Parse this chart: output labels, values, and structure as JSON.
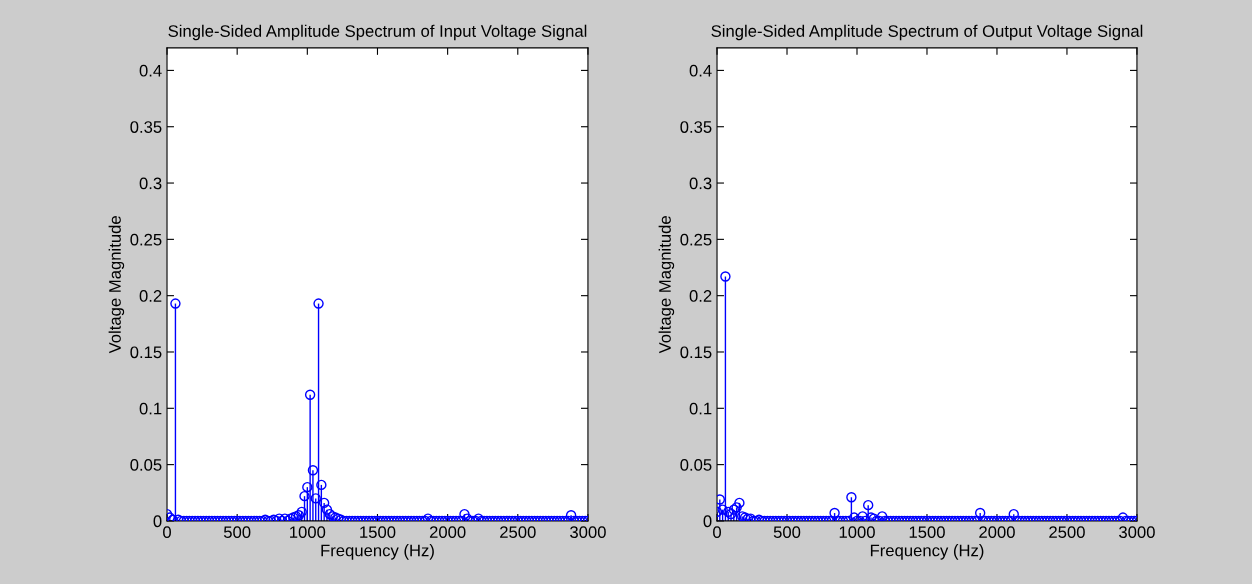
{
  "chart_data": [
    {
      "type": "lollipop",
      "title": "Single-Sided Amplitude Spectrum of Input Voltage Signal",
      "xlabel": "Frequency (Hz)",
      "ylabel": "Voltage Magnitude",
      "x": [
        0,
        20,
        40,
        60,
        80,
        100,
        120,
        140,
        160,
        180,
        200,
        220,
        240,
        260,
        280,
        300,
        320,
        340,
        360,
        380,
        400,
        420,
        440,
        460,
        480,
        500,
        520,
        540,
        560,
        580,
        600,
        620,
        640,
        660,
        680,
        700,
        720,
        740,
        760,
        780,
        800,
        820,
        840,
        860,
        880,
        900,
        920,
        940,
        960,
        980,
        1000,
        1020,
        1040,
        1060,
        1080,
        1100,
        1120,
        1140,
        1160,
        1180,
        1200,
        1220,
        1240,
        1260,
        1280,
        1300,
        1320,
        1340,
        1360,
        1380,
        1400,
        1420,
        1440,
        1460,
        1480,
        1500,
        1520,
        1540,
        1560,
        1580,
        1600,
        1620,
        1640,
        1660,
        1680,
        1700,
        1720,
        1740,
        1760,
        1780,
        1800,
        1820,
        1840,
        1860,
        1880,
        1900,
        1920,
        1940,
        1960,
        1980,
        2000,
        2020,
        2040,
        2060,
        2080,
        2100,
        2120,
        2140,
        2160,
        2180,
        2200,
        2220,
        2240,
        2260,
        2280,
        2300,
        2320,
        2340,
        2360,
        2380,
        2400,
        2420,
        2440,
        2460,
        2480,
        2500,
        2520,
        2540,
        2560,
        2580,
        2600,
        2620,
        2640,
        2660,
        2680,
        2700,
        2720,
        2740,
        2760,
        2780,
        2800,
        2820,
        2840,
        2860,
        2880,
        2900,
        2920,
        2940,
        2960,
        2980,
        3000
      ],
      "series": [
        {
          "color": "#0000ff",
          "values": [
            0.006,
            0.003,
            0.001,
            0.193,
            0.001,
            0,
            0,
            0,
            0,
            0,
            0,
            0,
            0,
            0,
            0,
            0,
            0,
            0,
            0,
            0,
            0,
            0,
            0,
            0,
            0,
            0,
            0,
            0,
            0,
            0,
            0,
            0,
            0,
            0,
            0,
            0.001,
            0,
            0,
            0.001,
            0,
            0.002,
            0,
            0.002,
            0,
            0.002,
            0.003,
            0.004,
            0.005,
            0.008,
            0.022,
            0.03,
            0.112,
            0.045,
            0.02,
            0.193,
            0.032,
            0.016,
            0.01,
            0.006,
            0.004,
            0.003,
            0.002,
            0.001,
            0,
            0,
            0,
            0,
            0,
            0,
            0,
            0,
            0,
            0,
            0,
            0,
            0,
            0,
            0,
            0,
            0,
            0,
            0,
            0,
            0,
            0,
            0,
            0,
            0,
            0,
            0,
            0,
            0,
            0,
            0.002,
            0,
            0,
            0,
            0,
            0,
            0,
            0,
            0,
            0,
            0,
            0,
            0,
            0.006,
            0.002,
            0,
            0,
            0,
            0.002,
            0,
            0,
            0,
            0,
            0,
            0,
            0,
            0,
            0,
            0,
            0,
            0,
            0,
            0,
            0,
            0,
            0,
            0,
            0,
            0,
            0,
            0,
            0,
            0,
            0,
            0,
            0,
            0,
            0,
            0,
            0,
            0,
            0.005,
            0,
            0,
            0,
            0,
            0,
            0
          ]
        }
      ],
      "xlim": [
        0,
        3000
      ],
      "xticks": [
        0,
        500,
        1000,
        1500,
        2000,
        2500,
        3000
      ],
      "ylim": [
        0,
        0.42
      ],
      "yticks": [
        0,
        0.05,
        0.1,
        0.15,
        0.2,
        0.25,
        0.3,
        0.35,
        0.4
      ],
      "marker": "circle",
      "grid": false,
      "legend": false
    },
    {
      "type": "lollipop",
      "title": "Single-Sided Amplitude Spectrum of Output Voltage Signal",
      "xlabel": "Frequency (Hz)",
      "ylabel": "Voltage Magnitude",
      "x": [
        0,
        20,
        40,
        60,
        80,
        100,
        120,
        140,
        160,
        180,
        200,
        220,
        240,
        260,
        280,
        300,
        320,
        340,
        360,
        380,
        400,
        420,
        440,
        460,
        480,
        500,
        520,
        540,
        560,
        580,
        600,
        620,
        640,
        660,
        680,
        700,
        720,
        740,
        760,
        780,
        800,
        820,
        840,
        860,
        880,
        900,
        920,
        940,
        960,
        980,
        1000,
        1020,
        1040,
        1060,
        1080,
        1100,
        1120,
        1140,
        1160,
        1180,
        1200,
        1220,
        1240,
        1260,
        1280,
        1300,
        1320,
        1340,
        1360,
        1380,
        1400,
        1420,
        1440,
        1460,
        1480,
        1500,
        1520,
        1540,
        1560,
        1580,
        1600,
        1620,
        1640,
        1660,
        1680,
        1700,
        1720,
        1740,
        1760,
        1780,
        1800,
        1820,
        1840,
        1860,
        1880,
        1900,
        1920,
        1940,
        1960,
        1980,
        2000,
        2020,
        2040,
        2060,
        2080,
        2100,
        2120,
        2140,
        2160,
        2180,
        2200,
        2220,
        2240,
        2260,
        2280,
        2300,
        2320,
        2340,
        2360,
        2380,
        2400,
        2420,
        2440,
        2460,
        2480,
        2500,
        2520,
        2540,
        2560,
        2580,
        2600,
        2620,
        2640,
        2660,
        2680,
        2700,
        2720,
        2740,
        2760,
        2780,
        2800,
        2820,
        2840,
        2860,
        2880,
        2900,
        2920,
        2940,
        2960,
        2980,
        3000
      ],
      "series": [
        {
          "color": "#0000ff",
          "values": [
            0.008,
            0.019,
            0.01,
            0.217,
            0.008,
            0.006,
            0.01,
            0.012,
            0.016,
            0.004,
            0.003,
            0.002,
            0.002,
            0,
            0,
            0.001,
            0,
            0,
            0,
            0,
            0,
            0,
            0,
            0,
            0,
            0,
            0,
            0,
            0,
            0,
            0,
            0,
            0,
            0,
            0,
            0,
            0,
            0,
            0,
            0,
            0,
            0,
            0.007,
            0,
            0,
            0,
            0,
            0,
            0.021,
            0.003,
            0,
            0,
            0.004,
            0,
            0.014,
            0.003,
            0.002,
            0,
            0,
            0.004,
            0,
            0,
            0,
            0,
            0,
            0,
            0,
            0,
            0,
            0,
            0,
            0,
            0,
            0,
            0,
            0,
            0,
            0,
            0,
            0,
            0,
            0,
            0,
            0,
            0,
            0,
            0,
            0,
            0,
            0,
            0,
            0,
            0,
            0,
            0.007,
            0,
            0,
            0,
            0,
            0,
            0,
            0,
            0,
            0,
            0,
            0,
            0.006,
            0,
            0,
            0,
            0,
            0,
            0,
            0,
            0,
            0,
            0,
            0,
            0,
            0,
            0,
            0,
            0,
            0,
            0,
            0,
            0,
            0,
            0,
            0,
            0,
            0,
            0,
            0,
            0,
            0,
            0,
            0,
            0,
            0,
            0,
            0,
            0,
            0,
            0,
            0.003,
            0,
            0,
            0,
            0,
            0
          ]
        }
      ],
      "xlim": [
        0,
        3000
      ],
      "xticks": [
        0,
        500,
        1000,
        1500,
        2000,
        2500,
        3000
      ],
      "ylim": [
        0,
        0.42
      ],
      "yticks": [
        0,
        0.05,
        0.1,
        0.15,
        0.2,
        0.25,
        0.3,
        0.35,
        0.4
      ],
      "marker": "circle",
      "grid": false,
      "legend": false
    }
  ]
}
